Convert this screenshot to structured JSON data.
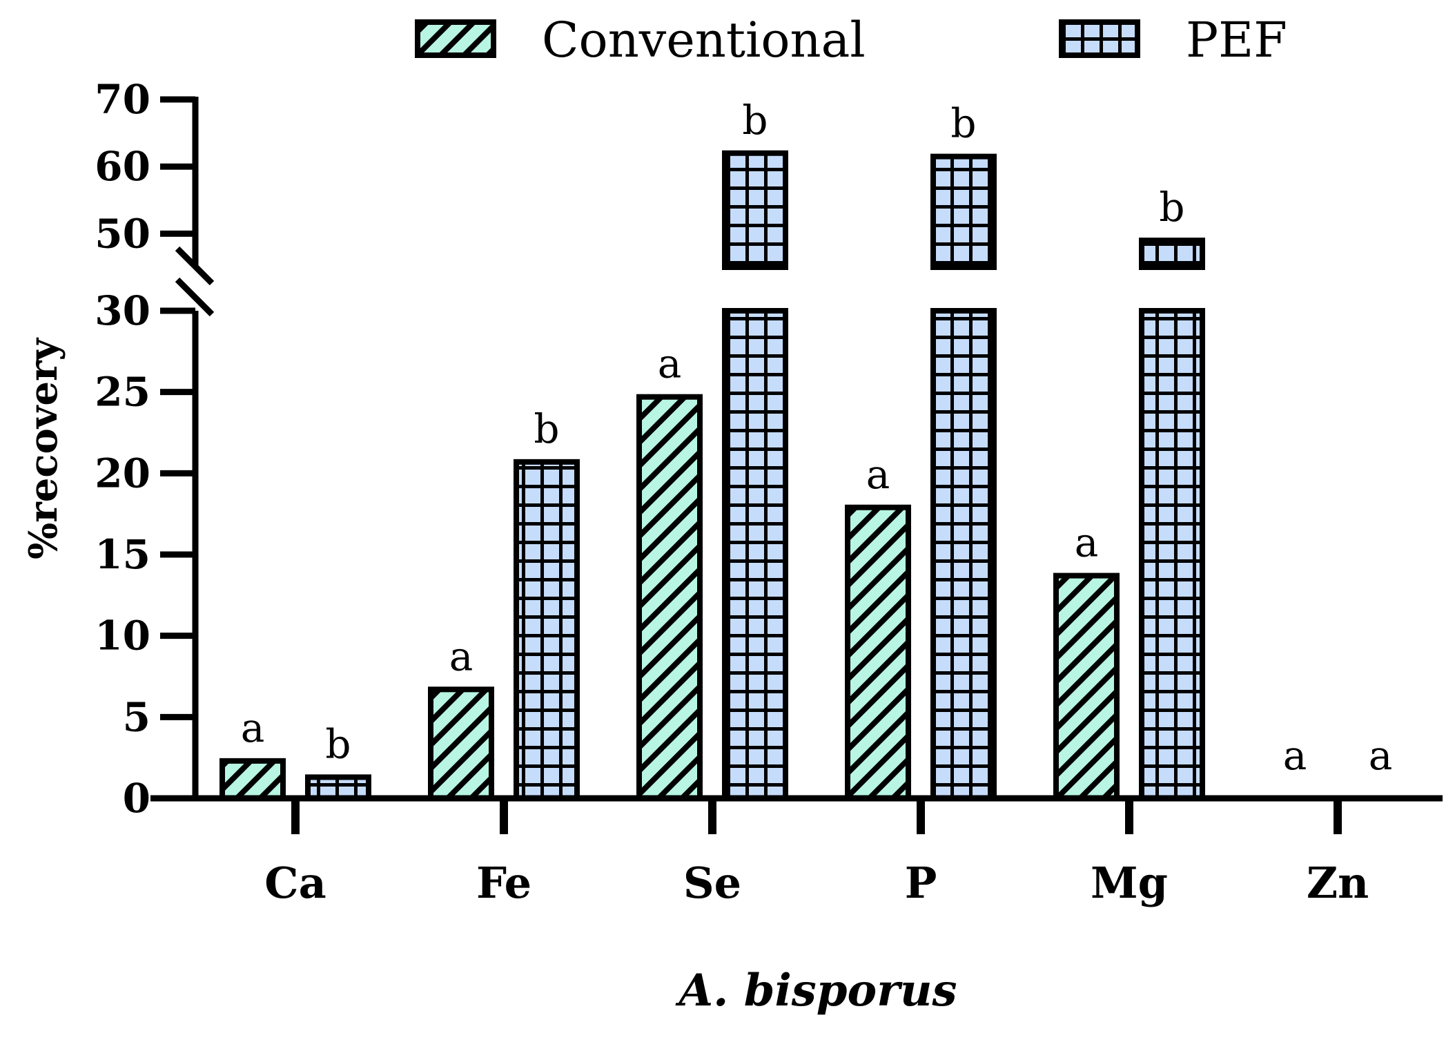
{
  "chart_data": {
    "type": "bar",
    "xlabel": "A. bisporus",
    "ylabel": "%recovery",
    "categories": [
      "Ca",
      "Fe",
      "Se",
      "P",
      "Mg",
      "Zn"
    ],
    "series": [
      {
        "name": "Conventional",
        "values": [
          2.3,
          6.7,
          24.7,
          17.9,
          13.7,
          0
        ],
        "labels": [
          "a",
          "a",
          "a",
          "a",
          "a",
          "a"
        ],
        "color": "#b8f5e3",
        "pattern": "diagonal-hatch"
      },
      {
        "name": "PEF",
        "values": [
          1.3,
          20.7,
          62,
          61.5,
          49,
          0
        ],
        "labels": [
          "b",
          "b",
          "b",
          "b",
          "b",
          "a"
        ],
        "color": "#c6dcfb",
        "pattern": "grid"
      }
    ],
    "y_axis": {
      "broken": true,
      "lower_range": [
        0,
        30
      ],
      "upper_range": [
        45,
        70
      ],
      "lower_ticks": [
        0,
        5,
        10,
        15,
        20,
        25,
        30
      ],
      "upper_ticks": [
        50,
        60,
        70
      ],
      "tick_labels": [
        "0",
        "5",
        "10",
        "15",
        "20",
        "25",
        "30",
        "50",
        "60",
        "70"
      ]
    },
    "legend": {
      "position": "top",
      "entries": [
        "Conventional",
        "PEF"
      ]
    },
    "grid": false
  }
}
